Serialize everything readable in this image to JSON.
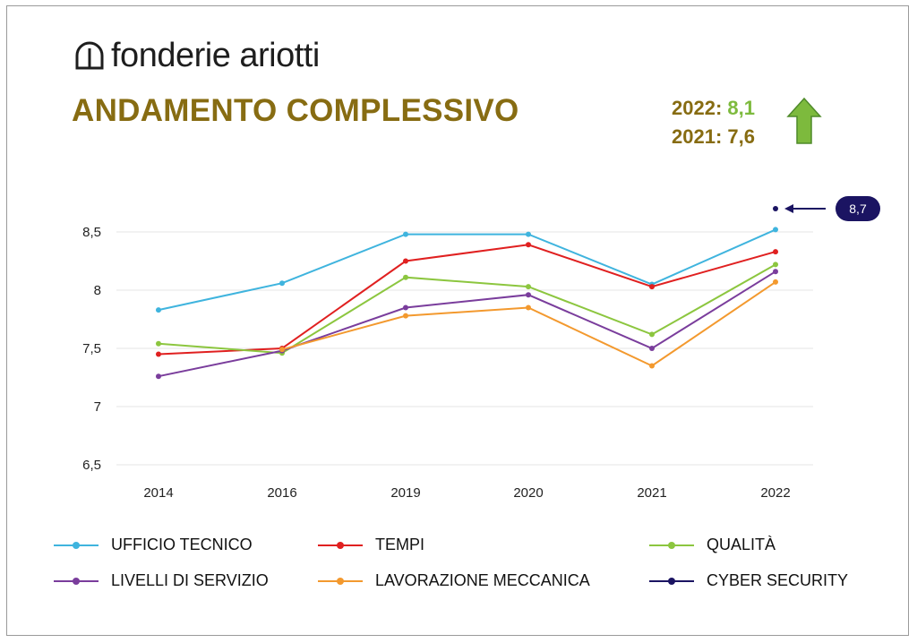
{
  "brand": {
    "name": "fonderie ariotti"
  },
  "header": {
    "title": "ANDAMENTO COMPLESSIVO"
  },
  "summary": {
    "y2022_label": "2022:",
    "y2022_value": "8,1",
    "y2021_label": "2021:",
    "y2021_value": "7,6",
    "trend_icon": "arrow-up-icon",
    "trend_color": "#7dba3d"
  },
  "chart_data": {
    "type": "line",
    "categories": [
      "2014",
      "2016",
      "2019",
      "2020",
      "2021",
      "2022"
    ],
    "ylim": [
      6.5,
      8.5
    ],
    "yticks": [
      "6,5",
      "7",
      "7,5",
      "8",
      "8,5"
    ],
    "grid": true,
    "series": [
      {
        "name": "UFFICIO TECNICO",
        "color": "#3fb4de",
        "values": [
          7.83,
          8.06,
          8.48,
          8.48,
          8.05,
          8.52
        ]
      },
      {
        "name": "TEMPI",
        "color": "#e02020",
        "values": [
          7.45,
          7.5,
          8.25,
          8.39,
          8.03,
          8.33
        ]
      },
      {
        "name": "QUALITÀ",
        "color": "#8cc63f",
        "values": [
          7.54,
          7.46,
          8.11,
          8.03,
          7.62,
          8.22
        ]
      },
      {
        "name": "LIVELLI DI SERVIZIO",
        "color": "#7a3d9c",
        "values": [
          7.26,
          7.48,
          7.85,
          7.96,
          7.5,
          8.16
        ]
      },
      {
        "name": "LAVORAZIONE MECCANICA",
        "color": "#f3992e",
        "values": [
          null,
          7.49,
          7.78,
          7.85,
          7.35,
          8.07
        ]
      },
      {
        "name": "CYBER SECURITY",
        "color": "#1b1462",
        "values": [
          null,
          null,
          null,
          null,
          null,
          8.7
        ]
      }
    ],
    "annotation": {
      "text": "8,7",
      "series": "CYBER SECURITY",
      "category": "2022"
    }
  }
}
